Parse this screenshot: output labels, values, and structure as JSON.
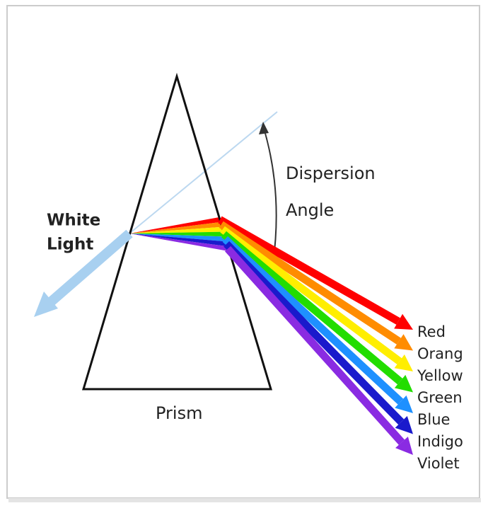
{
  "white_light": {
    "lines": [
      "White",
      "Light"
    ]
  },
  "dispersion_angle": {
    "lines": [
      "Dispersion",
      "Angle"
    ]
  },
  "prism": "Prism",
  "rays": [
    {
      "label": "Red",
      "color": "#ff0000"
    },
    {
      "label": "Orang",
      "color": "#ff8c00"
    },
    {
      "label": "Yellow",
      "color": "#ffee00"
    },
    {
      "label": "Green",
      "color": "#22dd00"
    },
    {
      "label": "Blue",
      "color": "#1e90ff"
    },
    {
      "label": "Indigo",
      "color": "#1a1acc"
    },
    {
      "label": "Violet",
      "color": "#8a2be2"
    }
  ]
}
